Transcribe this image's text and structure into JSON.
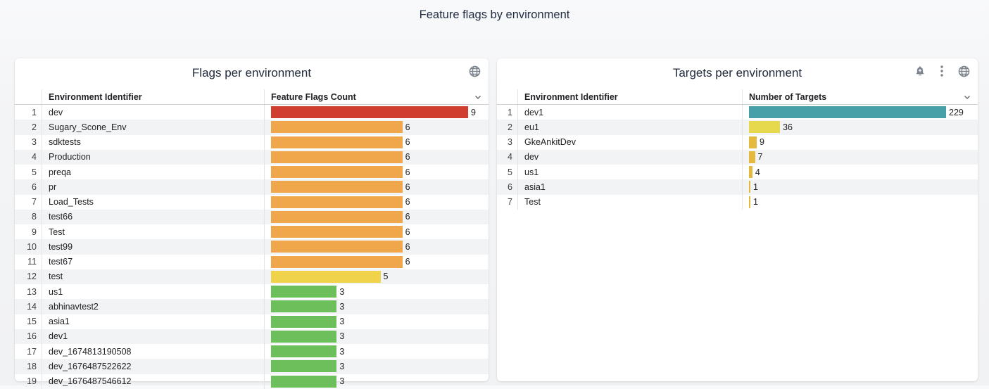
{
  "page": {
    "title": "Feature flags by environment",
    "background": "#f3f4f6",
    "accent_colors": {
      "red": "#cf3e2f",
      "orange": "#f0a64a",
      "yellow": "#f1d24b",
      "green": "#6dbf5b",
      "teal": "#47a0a8",
      "bright_yellow": "#e7d94e",
      "gold": "#e5b93d",
      "icon_gray": "#7b838c"
    }
  },
  "panels": [
    {
      "title": "Flags per environment",
      "icons": [
        "globe-icon"
      ],
      "columns": [
        "Environment Identifier",
        "Feature Flags Count"
      ],
      "bar_max": 9,
      "rows": [
        {
          "index": "1",
          "name": "dev",
          "value": "9",
          "color": "#cf3e2f"
        },
        {
          "index": "2",
          "name": "Sugary_Scone_Env",
          "value": "6",
          "color": "#f0a64a"
        },
        {
          "index": "3",
          "name": "sdktests",
          "value": "6",
          "color": "#f0a64a"
        },
        {
          "index": "4",
          "name": "Production",
          "value": "6",
          "color": "#f0a64a"
        },
        {
          "index": "5",
          "name": "preqa",
          "value": "6",
          "color": "#f0a64a"
        },
        {
          "index": "6",
          "name": "pr",
          "value": "6",
          "color": "#f0a64a"
        },
        {
          "index": "7",
          "name": "Load_Tests",
          "value": "6",
          "color": "#f0a64a"
        },
        {
          "index": "8",
          "name": "test66",
          "value": "6",
          "color": "#f0a64a"
        },
        {
          "index": "9",
          "name": "Test",
          "value": "6",
          "color": "#f0a64a"
        },
        {
          "index": "10",
          "name": "test99",
          "value": "6",
          "color": "#f0a64a"
        },
        {
          "index": "11",
          "name": "test67",
          "value": "6",
          "color": "#f0a64a"
        },
        {
          "index": "12",
          "name": "test",
          "value": "5",
          "color": "#f1d24b"
        },
        {
          "index": "13",
          "name": "us1",
          "value": "3",
          "color": "#6dbf5b"
        },
        {
          "index": "14",
          "name": "abhinavtest2",
          "value": "3",
          "color": "#6dbf5b"
        },
        {
          "index": "15",
          "name": "asia1",
          "value": "3",
          "color": "#6dbf5b"
        },
        {
          "index": "16",
          "name": "dev1",
          "value": "3",
          "color": "#6dbf5b"
        },
        {
          "index": "17",
          "name": "dev_1674813190508",
          "value": "3",
          "color": "#6dbf5b"
        },
        {
          "index": "18",
          "name": "dev_1676487522622",
          "value": "3",
          "color": "#6dbf5b"
        },
        {
          "index": "19",
          "name": "dev_1676487546612",
          "value": "3",
          "color": "#6dbf5b"
        }
      ]
    },
    {
      "title": "Targets per environment",
      "icons": [
        "alert-bell-icon",
        "kebab-menu-icon",
        "globe-icon"
      ],
      "columns": [
        "Environment Identifier",
        "Number of Targets"
      ],
      "bar_max": 229,
      "rows": [
        {
          "index": "1",
          "name": "dev1",
          "value": "229",
          "color": "#47a0a8"
        },
        {
          "index": "2",
          "name": "eu1",
          "value": "36",
          "color": "#e7d94e"
        },
        {
          "index": "3",
          "name": "GkeAnkitDev",
          "value": "9",
          "color": "#e5b93d"
        },
        {
          "index": "4",
          "name": "dev",
          "value": "7",
          "color": "#e5b93d"
        },
        {
          "index": "5",
          "name": "us1",
          "value": "4",
          "color": "#e5b93d"
        },
        {
          "index": "6",
          "name": "asia1",
          "value": "1",
          "color": "#e5b93d"
        },
        {
          "index": "7",
          "name": "Test",
          "value": "1",
          "color": "#e5b93d"
        }
      ]
    }
  ],
  "chart_data": [
    {
      "type": "bar",
      "orientation": "horizontal",
      "title": "Flags per environment",
      "xlabel": "Feature Flags Count",
      "ylabel": "Environment Identifier",
      "xlim": [
        0,
        9
      ],
      "categories": [
        "dev",
        "Sugary_Scone_Env",
        "sdktests",
        "Production",
        "preqa",
        "pr",
        "Load_Tests",
        "test66",
        "Test",
        "test99",
        "test67",
        "test",
        "us1",
        "abhinavtest2",
        "asia1",
        "dev1",
        "dev_1674813190508",
        "dev_1676487522622",
        "dev_1676487546612"
      ],
      "values": [
        9,
        6,
        6,
        6,
        6,
        6,
        6,
        6,
        6,
        6,
        6,
        5,
        3,
        3,
        3,
        3,
        3,
        3,
        3
      ]
    },
    {
      "type": "bar",
      "orientation": "horizontal",
      "title": "Targets per environment",
      "xlabel": "Number of Targets",
      "ylabel": "Environment Identifier",
      "xlim": [
        0,
        229
      ],
      "categories": [
        "dev1",
        "eu1",
        "GkeAnkitDev",
        "dev",
        "us1",
        "asia1",
        "Test"
      ],
      "values": [
        229,
        36,
        9,
        7,
        4,
        1,
        1
      ]
    }
  ]
}
